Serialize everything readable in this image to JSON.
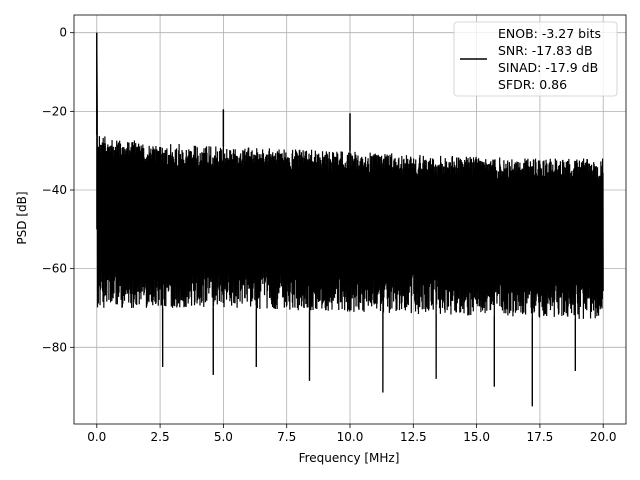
{
  "chart_data": {
    "type": "line",
    "title": "",
    "xlabel": "Frequency [MHz]",
    "ylabel": "PSD [dB]",
    "xlim": [
      -0.9,
      20.9
    ],
    "ylim": [
      -99.5,
      4.5
    ],
    "xticks": [
      0,
      2.5,
      5,
      7.5,
      10,
      12.5,
      15,
      17.5,
      20
    ],
    "xtick_labels": [
      "0.0",
      "2.5",
      "5.0",
      "7.5",
      "10.0",
      "12.5",
      "15.0",
      "17.5",
      "20.0"
    ],
    "yticks": [
      0,
      -20,
      -40,
      -60,
      -80
    ],
    "ytick_labels": [
      "0",
      "−20",
      "−40",
      "−60",
      "−80"
    ],
    "grid": true,
    "legend_position": "top-right",
    "series_color": "#000000",
    "series": [
      {
        "name": "ENOB: -3.27 bits\nSNR: -17.83 dB\nSINAD: -17.9 dB\nSFDR: 0.86",
        "legend_lines": [
          "ENOB: -3.27 bits",
          "SNR: -17.83 dB",
          "SINAD: -17.9 dB",
          "SFDR: 0.86"
        ],
        "noise_upper_envelope": [
          [
            0.05,
            -26
          ],
          [
            1,
            -27
          ],
          [
            2.5,
            -28
          ],
          [
            5,
            -29
          ],
          [
            7.5,
            -29.5
          ],
          [
            10,
            -30
          ],
          [
            12.5,
            -31
          ],
          [
            15,
            -31.5
          ],
          [
            17.5,
            -32
          ],
          [
            20,
            -32
          ]
        ],
        "noise_lower_envelope": [
          [
            0.05,
            -70
          ],
          [
            5,
            -70
          ],
          [
            10,
            -71
          ],
          [
            15,
            -72
          ],
          [
            20,
            -73
          ]
        ],
        "peaks": [
          {
            "x": 0.0,
            "y": 0
          },
          {
            "x": 5.0,
            "y": -19.5
          },
          {
            "x": 10.0,
            "y": -20.5
          }
        ],
        "deep_dips": [
          {
            "x": 2.6,
            "y": -85
          },
          {
            "x": 4.6,
            "y": -87
          },
          {
            "x": 6.3,
            "y": -85
          },
          {
            "x": 8.4,
            "y": -88.5
          },
          {
            "x": 11.3,
            "y": -91.5
          },
          {
            "x": 13.4,
            "y": -88
          },
          {
            "x": 15.7,
            "y": -90
          },
          {
            "x": 17.2,
            "y": -95
          },
          {
            "x": 18.9,
            "y": -86
          }
        ]
      }
    ]
  }
}
